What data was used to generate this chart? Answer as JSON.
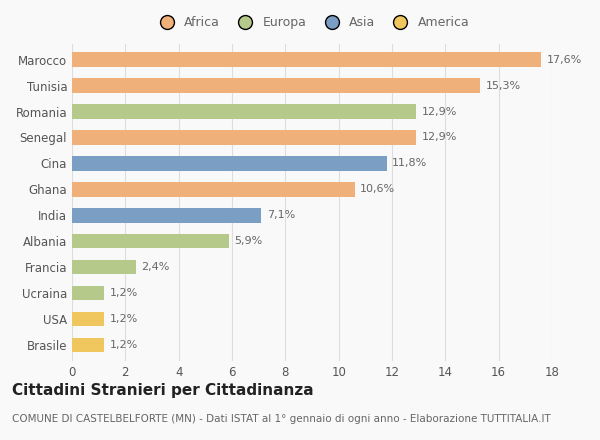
{
  "categories": [
    "Brasile",
    "USA",
    "Ucraina",
    "Francia",
    "Albania",
    "India",
    "Ghana",
    "Cina",
    "Senegal",
    "Romania",
    "Tunisia",
    "Marocco"
  ],
  "values": [
    1.2,
    1.2,
    1.2,
    2.4,
    5.9,
    7.1,
    10.6,
    11.8,
    12.9,
    12.9,
    15.3,
    17.6
  ],
  "colors": [
    "#f0c75e",
    "#f0c75e",
    "#b5c98a",
    "#b5c98a",
    "#b5c98a",
    "#7b9ec4",
    "#f0b07a",
    "#7b9ec4",
    "#f0b07a",
    "#b5c98a",
    "#f0b07a",
    "#f0b07a"
  ],
  "labels": [
    "1,2%",
    "1,2%",
    "1,2%",
    "2,4%",
    "5,9%",
    "7,1%",
    "10,6%",
    "11,8%",
    "12,9%",
    "12,9%",
    "15,3%",
    "17,6%"
  ],
  "legend_labels": [
    "Africa",
    "Europa",
    "Asia",
    "America"
  ],
  "legend_colors": [
    "#f0b07a",
    "#b5c98a",
    "#7b9ec4",
    "#f0c75e"
  ],
  "title": "Cittadini Stranieri per Cittadinanza",
  "subtitle": "COMUNE DI CASTELBELFORTE (MN) - Dati ISTAT al 1° gennaio di ogni anno - Elaborazione TUTTITALIA.IT",
  "xlim": [
    0,
    18
  ],
  "xticks": [
    0,
    2,
    4,
    6,
    8,
    10,
    12,
    14,
    16,
    18
  ],
  "background_color": "#f9f9f9",
  "bar_height": 0.55,
  "title_fontsize": 11,
  "subtitle_fontsize": 7.5,
  "label_fontsize": 8,
  "tick_fontsize": 8.5,
  "legend_fontsize": 9
}
